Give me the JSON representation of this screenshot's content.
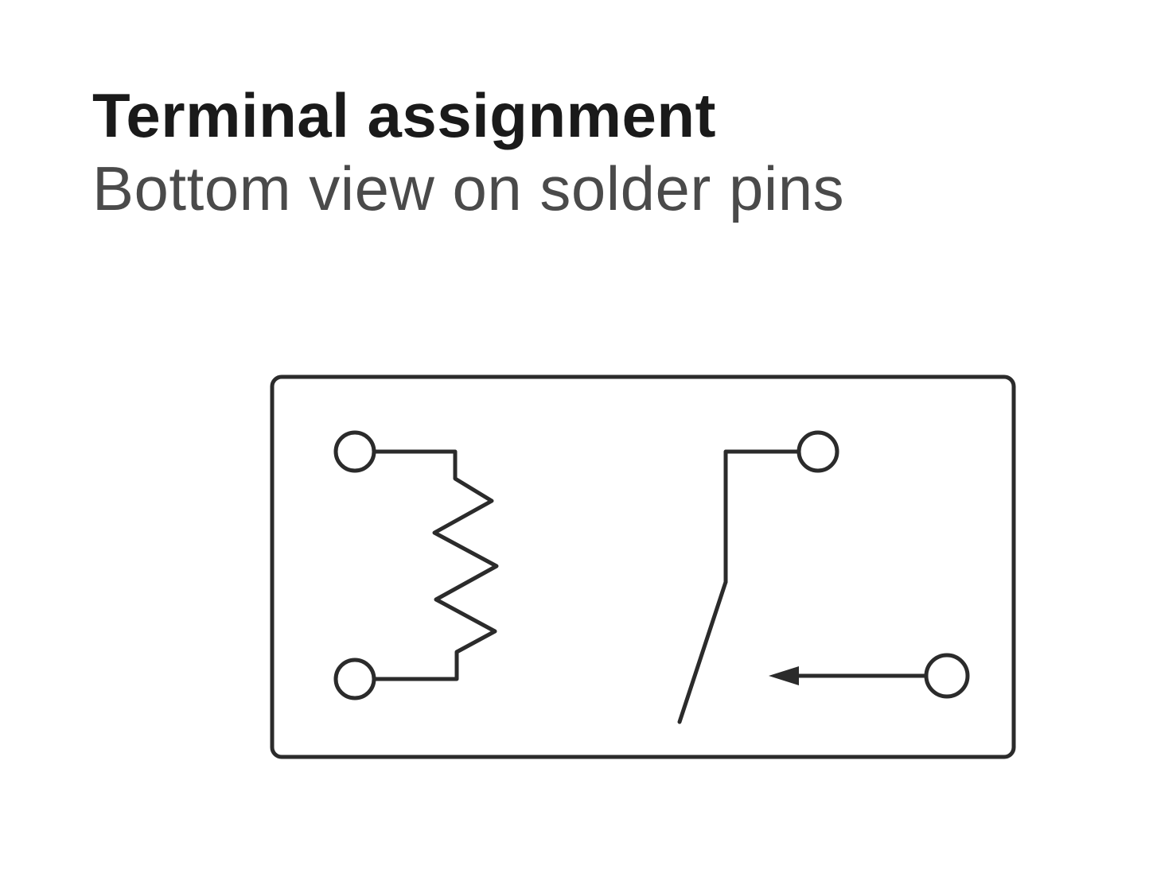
{
  "heading": {
    "title": "Terminal assignment",
    "subtitle": "Bottom view on solder pins"
  },
  "diagram": {
    "components": [
      "relay-coil",
      "normally-open-contact"
    ],
    "terminal_count": 4,
    "line_color": "#2b2b2b"
  }
}
